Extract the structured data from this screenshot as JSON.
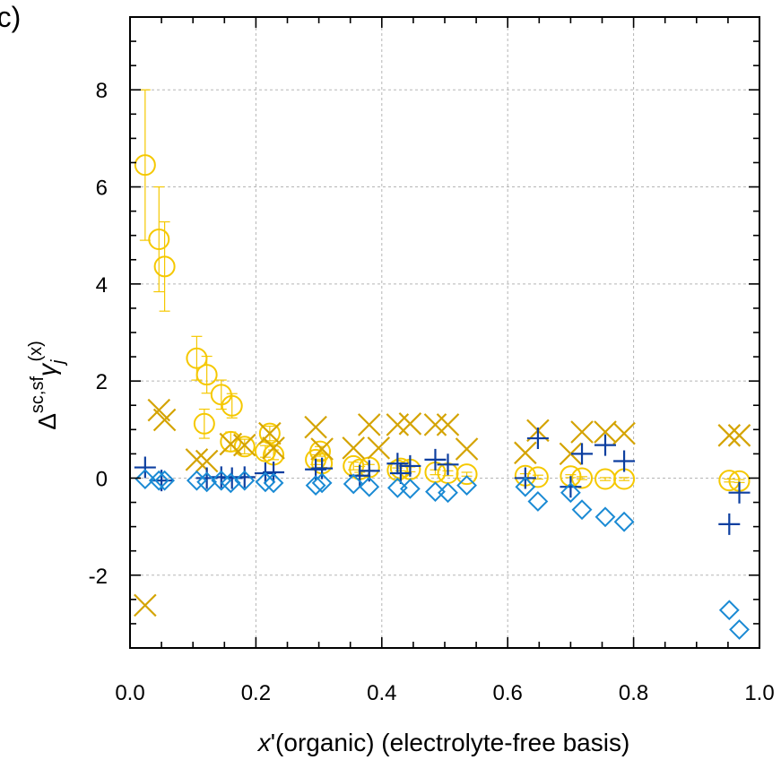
{
  "panel_label": "(c)",
  "chart_data": {
    "type": "scatter",
    "title": "",
    "xlabel": {
      "italic": "x",
      "rest": "'(organic)  (electrolyte-free basis)"
    },
    "ylabel": {
      "delta": "Δ",
      "sup": "sc,sf",
      "gamma": "γ",
      "sub": "j",
      "sup2": "(x)"
    },
    "xlim": [
      0,
      1
    ],
    "ylim": [
      -3.5,
      9.5
    ],
    "xticks": [
      0.0,
      0.2,
      0.4,
      0.6,
      0.8,
      1.0
    ],
    "xtick_labels": [
      "0.0",
      "0.2",
      "0.4",
      "0.6",
      "0.8",
      "1.0"
    ],
    "yticks": [
      -2,
      0,
      2,
      4,
      6,
      8
    ],
    "ytick_labels": [
      "-2",
      "0",
      "2",
      "4",
      "6",
      "8"
    ],
    "grid": true,
    "series": [
      {
        "marker": "circle",
        "color": "#f5c800",
        "points": [
          {
            "x": 0.024,
            "y": 6.45,
            "err": 1.55
          },
          {
            "x": 0.046,
            "y": 4.92,
            "err": 1.08
          },
          {
            "x": 0.055,
            "y": 4.36,
            "err": 0.92
          },
          {
            "x": 0.106,
            "y": 2.47,
            "err": 0.45
          },
          {
            "x": 0.118,
            "y": 1.12,
            "err": 0.3
          },
          {
            "x": 0.122,
            "y": 2.13,
            "err": 0.38
          },
          {
            "x": 0.145,
            "y": 1.72,
            "err": 0.3
          },
          {
            "x": 0.16,
            "y": 0.75,
            "err": 0.2
          },
          {
            "x": 0.162,
            "y": 1.49,
            "err": 0.25
          },
          {
            "x": 0.182,
            "y": 0.65,
            "err": 0.15
          },
          {
            "x": 0.215,
            "y": 0.55,
            "err": 0.12
          },
          {
            "x": 0.222,
            "y": 0.92,
            "err": 0.15
          },
          {
            "x": 0.228,
            "y": 0.48,
            "err": 0.1
          },
          {
            "x": 0.295,
            "y": 0.38,
            "err": 0.1
          },
          {
            "x": 0.302,
            "y": 0.55,
            "err": 0.1
          },
          {
            "x": 0.305,
            "y": 0.3,
            "err": 0.08
          },
          {
            "x": 0.355,
            "y": 0.25,
            "err": 0.08
          },
          {
            "x": 0.365,
            "y": 0.18,
            "err": 0.06
          },
          {
            "x": 0.38,
            "y": 0.22,
            "err": 0.06
          },
          {
            "x": 0.425,
            "y": 0.16,
            "err": 0.05
          },
          {
            "x": 0.43,
            "y": 0.2,
            "err": 0.05
          },
          {
            "x": 0.445,
            "y": 0.18,
            "err": 0.05
          },
          {
            "x": 0.485,
            "y": 0.12,
            "err": 0.05
          },
          {
            "x": 0.505,
            "y": 0.1,
            "err": 0.05
          },
          {
            "x": 0.535,
            "y": 0.08,
            "err": 0.04
          },
          {
            "x": 0.628,
            "y": 0.05,
            "err": 0.04
          },
          {
            "x": 0.648,
            "y": 0.02,
            "err": 0.04
          },
          {
            "x": 0.7,
            "y": 0.04,
            "err": 0.03
          },
          {
            "x": 0.718,
            "y": 0.0,
            "err": 0.03
          },
          {
            "x": 0.755,
            "y": -0.02,
            "err": 0.03
          },
          {
            "x": 0.785,
            "y": -0.02,
            "err": 0.03
          },
          {
            "x": 0.952,
            "y": -0.05,
            "err": 0.03
          },
          {
            "x": 0.968,
            "y": -0.06,
            "err": 0.03
          }
        ]
      },
      {
        "marker": "cross",
        "color": "#d4a300",
        "points": [
          {
            "x": 0.024,
            "y": -2.62
          },
          {
            "x": 0.046,
            "y": 1.4
          },
          {
            "x": 0.055,
            "y": 1.2
          },
          {
            "x": 0.106,
            "y": 0.38
          },
          {
            "x": 0.122,
            "y": 0.35
          },
          {
            "x": 0.16,
            "y": 0.7
          },
          {
            "x": 0.182,
            "y": 0.68
          },
          {
            "x": 0.222,
            "y": 0.92
          },
          {
            "x": 0.228,
            "y": 0.62
          },
          {
            "x": 0.295,
            "y": 1.05
          },
          {
            "x": 0.305,
            "y": 0.6
          },
          {
            "x": 0.355,
            "y": 0.62
          },
          {
            "x": 0.38,
            "y": 1.1
          },
          {
            "x": 0.395,
            "y": 0.62
          },
          {
            "x": 0.425,
            "y": 1.1
          },
          {
            "x": 0.445,
            "y": 1.12
          },
          {
            "x": 0.485,
            "y": 1.1
          },
          {
            "x": 0.505,
            "y": 1.1
          },
          {
            "x": 0.535,
            "y": 0.6
          },
          {
            "x": 0.628,
            "y": 0.52
          },
          {
            "x": 0.648,
            "y": 0.98
          },
          {
            "x": 0.7,
            "y": 0.5
          },
          {
            "x": 0.718,
            "y": 0.95
          },
          {
            "x": 0.755,
            "y": 0.95
          },
          {
            "x": 0.785,
            "y": 0.92
          },
          {
            "x": 0.952,
            "y": 0.88
          },
          {
            "x": 0.968,
            "y": 0.88
          }
        ]
      },
      {
        "marker": "plus",
        "color": "#0d3fa0",
        "points": [
          {
            "x": 0.024,
            "y": 0.22
          },
          {
            "x": 0.05,
            "y": -0.05
          },
          {
            "x": 0.122,
            "y": 0.0
          },
          {
            "x": 0.145,
            "y": 0.02
          },
          {
            "x": 0.162,
            "y": 0.0
          },
          {
            "x": 0.182,
            "y": 0.02
          },
          {
            "x": 0.215,
            "y": 0.1
          },
          {
            "x": 0.228,
            "y": 0.12
          },
          {
            "x": 0.295,
            "y": 0.18
          },
          {
            "x": 0.305,
            "y": 0.2
          },
          {
            "x": 0.365,
            "y": 0.05
          },
          {
            "x": 0.38,
            "y": 0.15
          },
          {
            "x": 0.425,
            "y": 0.3
          },
          {
            "x": 0.43,
            "y": 0.1
          },
          {
            "x": 0.445,
            "y": 0.25
          },
          {
            "x": 0.485,
            "y": 0.38
          },
          {
            "x": 0.505,
            "y": 0.28
          },
          {
            "x": 0.628,
            "y": 0.0
          },
          {
            "x": 0.648,
            "y": 0.82
          },
          {
            "x": 0.7,
            "y": -0.18
          },
          {
            "x": 0.718,
            "y": 0.5
          },
          {
            "x": 0.755,
            "y": 0.68
          },
          {
            "x": 0.785,
            "y": 0.35
          },
          {
            "x": 0.952,
            "y": -0.95
          },
          {
            "x": 0.968,
            "y": -0.3
          }
        ]
      },
      {
        "marker": "diamond",
        "color": "#1a8ad4",
        "points": [
          {
            "x": 0.024,
            "y": -0.02
          },
          {
            "x": 0.046,
            "y": -0.05
          },
          {
            "x": 0.055,
            "y": -0.05
          },
          {
            "x": 0.106,
            "y": -0.05
          },
          {
            "x": 0.122,
            "y": -0.08
          },
          {
            "x": 0.145,
            "y": -0.05
          },
          {
            "x": 0.16,
            "y": -0.1
          },
          {
            "x": 0.182,
            "y": -0.05
          },
          {
            "x": 0.215,
            "y": -0.08
          },
          {
            "x": 0.228,
            "y": -0.1
          },
          {
            "x": 0.295,
            "y": -0.15
          },
          {
            "x": 0.305,
            "y": -0.1
          },
          {
            "x": 0.355,
            "y": -0.12
          },
          {
            "x": 0.38,
            "y": -0.18
          },
          {
            "x": 0.425,
            "y": -0.2
          },
          {
            "x": 0.445,
            "y": -0.22
          },
          {
            "x": 0.485,
            "y": -0.28
          },
          {
            "x": 0.505,
            "y": -0.3
          },
          {
            "x": 0.535,
            "y": -0.15
          },
          {
            "x": 0.628,
            "y": -0.18
          },
          {
            "x": 0.648,
            "y": -0.48
          },
          {
            "x": 0.7,
            "y": -0.3
          },
          {
            "x": 0.718,
            "y": -0.65
          },
          {
            "x": 0.755,
            "y": -0.8
          },
          {
            "x": 0.785,
            "y": -0.9
          },
          {
            "x": 0.952,
            "y": -2.72
          },
          {
            "x": 0.968,
            "y": -3.12
          }
        ]
      }
    ]
  }
}
